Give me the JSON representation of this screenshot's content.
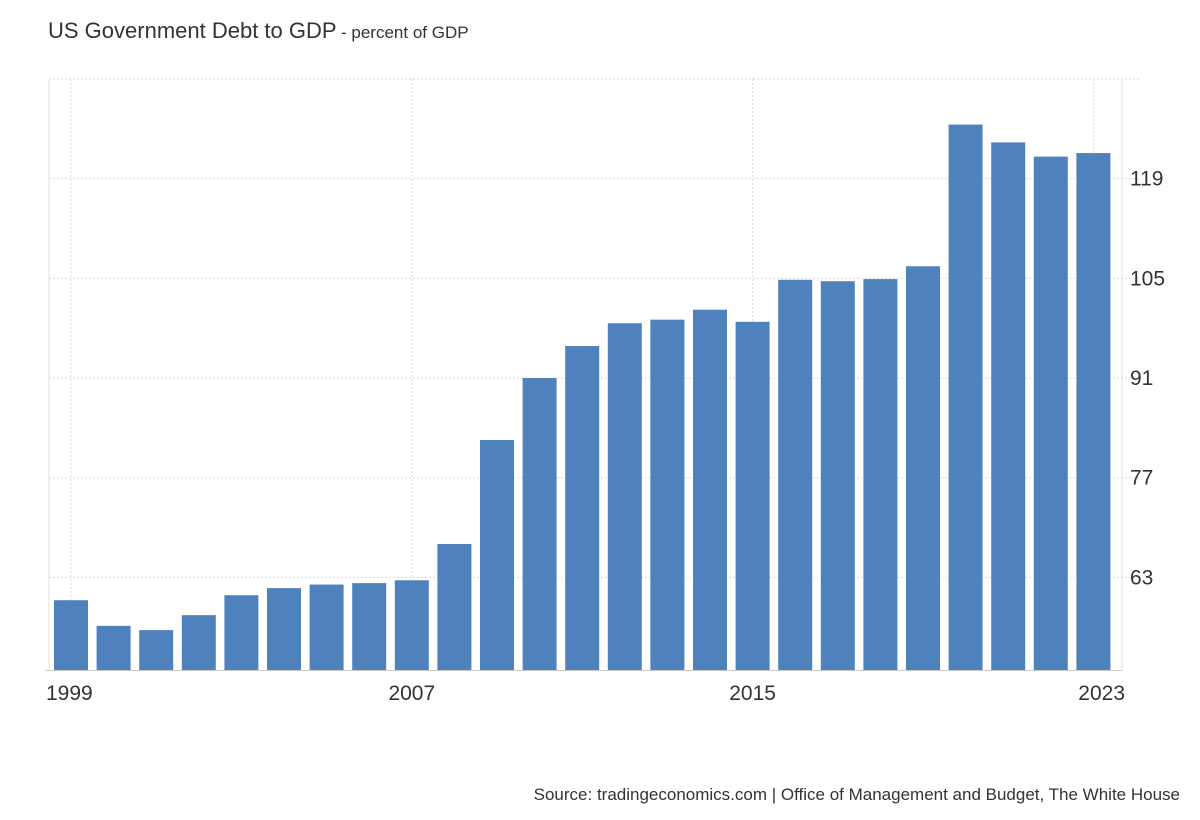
{
  "header": {
    "title": "US Government Debt to GDP",
    "subtitle": "- percent of GDP"
  },
  "source_text": "Source: tradingeconomics.com | Office of Management and Budget, The White House",
  "colors": {
    "bar": "#4f81bd",
    "grid": "#d9d9d9",
    "axis": "#e0e0e0",
    "text": "#333333"
  },
  "chart_data": {
    "type": "bar",
    "title": "US Government Debt to GDP",
    "subtitle": "- percent of GDP",
    "xlabel": "",
    "ylabel": "",
    "categories": [
      "1999",
      "2000",
      "2001",
      "2002",
      "2003",
      "2004",
      "2005",
      "2006",
      "2007",
      "2008",
      "2009",
      "2010",
      "2011",
      "2012",
      "2013",
      "2014",
      "2015",
      "2016",
      "2017",
      "2018",
      "2019",
      "2020",
      "2021",
      "2022",
      "2023"
    ],
    "values": [
      59.8,
      56.2,
      55.6,
      57.7,
      60.5,
      61.5,
      62.0,
      62.2,
      62.6,
      67.7,
      82.3,
      91.0,
      95.5,
      98.7,
      99.2,
      100.6,
      98.9,
      104.8,
      104.6,
      104.9,
      106.7,
      126.6,
      124.1,
      122.1,
      122.6
    ],
    "ylim": [
      50,
      133
    ],
    "yticks": [
      63,
      77,
      91,
      105,
      119
    ],
    "xtick_labels": [
      "1999",
      "2007",
      "2015",
      "2023"
    ],
    "xtick_indices": [
      0,
      8,
      16,
      24
    ],
    "y_axis_side": "right",
    "grid": true,
    "legend": "none"
  }
}
